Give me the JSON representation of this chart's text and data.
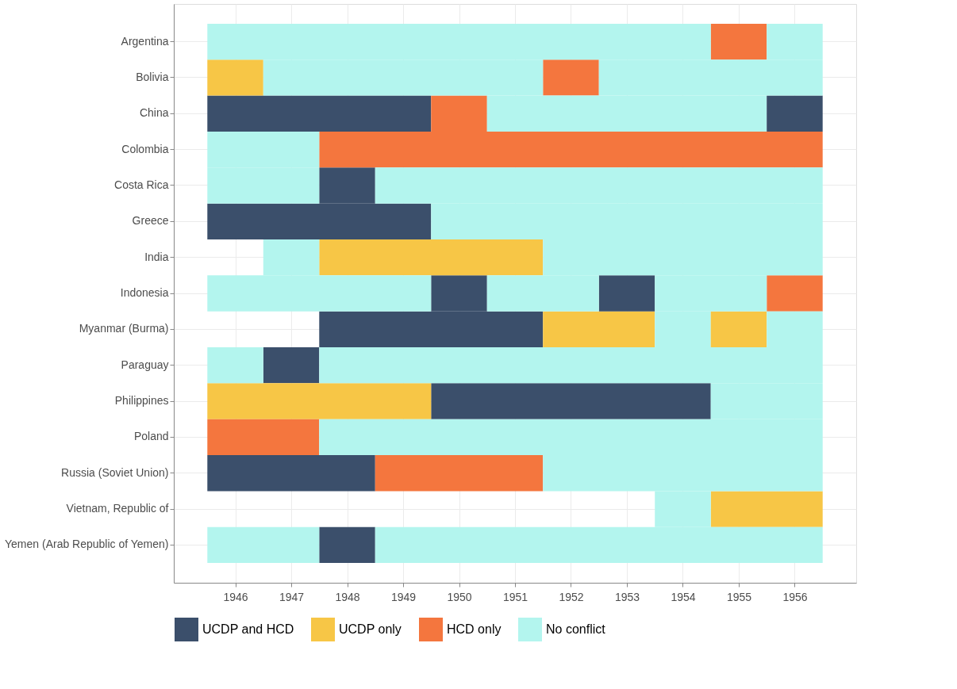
{
  "chart_data": {
    "type": "bar",
    "orientation": "horizontal",
    "categories": [
      "Argentina",
      "Bolivia",
      "China",
      "Colombia",
      "Costa Rica",
      "Greece",
      "India",
      "Indonesia",
      "Myanmar (Burma)",
      "Paraguay",
      "Philippines",
      "Poland",
      "Russia (Soviet Union)",
      "Vietnam, Republic of",
      "Yemen (Arab Republic of Yemen)"
    ],
    "xlim": [
      1944.9,
      1957.1
    ],
    "xticks": [
      1946,
      1947,
      1948,
      1949,
      1950,
      1951,
      1952,
      1953,
      1954,
      1955,
      1956
    ],
    "series": [
      {
        "name": "UCDP and HCD",
        "color": "#3b4f6b",
        "base": [
          null,
          null,
          1945.5,
          null,
          1947.5,
          1945.5,
          null,
          1949.5,
          1947.5,
          1946.5,
          1949.5,
          null,
          1945.5,
          null,
          1947.5
        ],
        "values": [
          null,
          null,
          4,
          null,
          1,
          4,
          null,
          1,
          4,
          1,
          5,
          null,
          3,
          null,
          1
        ]
      },
      {
        "color": "#3b4f6b",
        "base": [
          null,
          null,
          1955.5,
          null,
          null,
          null,
          null,
          1952.5,
          null,
          null,
          null,
          null,
          null,
          null,
          null
        ],
        "values": [
          null,
          null,
          1,
          null,
          null,
          null,
          null,
          1,
          null,
          null,
          null,
          null,
          null,
          null,
          null
        ]
      },
      {
        "name": "UCDP only",
        "color": "#f7c646",
        "base": [
          null,
          1945.5,
          null,
          null,
          null,
          null,
          1947.5,
          null,
          1951.5,
          null,
          1945.5,
          null,
          null,
          1954.5,
          null
        ],
        "values": [
          null,
          1,
          null,
          null,
          null,
          null,
          4,
          null,
          2,
          null,
          4,
          null,
          null,
          2,
          null
        ]
      },
      {
        "color": "#f7c646",
        "base": [
          null,
          null,
          null,
          null,
          null,
          null,
          null,
          null,
          1954.5,
          null,
          null,
          null,
          null,
          null,
          null
        ],
        "values": [
          null,
          null,
          null,
          null,
          null,
          null,
          null,
          null,
          1,
          null,
          null,
          null,
          null,
          null,
          null
        ]
      },
      {
        "name": "HCD only",
        "color": "#f4763e",
        "base": [
          1954.5,
          1951.5,
          1949.5,
          1947.5,
          null,
          null,
          null,
          1955.5,
          null,
          null,
          null,
          1945.5,
          1948.5,
          null,
          null
        ],
        "values": [
          1,
          1,
          1,
          9,
          null,
          null,
          null,
          1,
          null,
          null,
          null,
          2,
          3,
          null,
          null
        ]
      },
      {
        "name": "No conflict",
        "color": "#b3f5ee",
        "base": [
          1945.5,
          1946.5,
          1950.5,
          1945.5,
          1945.5,
          1949.5,
          1946.5,
          1945.5,
          1953.5,
          1945.5,
          1954.5,
          1947.5,
          1951.5,
          1953.5,
          1945.5
        ],
        "values": [
          9,
          5,
          5,
          2,
          2,
          7,
          1,
          4,
          1,
          1,
          2,
          9,
          5,
          1,
          2
        ]
      },
      {
        "color": "#b3f5ee",
        "base": [
          1955.5,
          1952.5,
          null,
          null,
          1948.5,
          null,
          1951.5,
          1950.5,
          1955.5,
          1947.5,
          null,
          null,
          null,
          null,
          1948.5
        ],
        "values": [
          1,
          4,
          null,
          null,
          8,
          null,
          5,
          2,
          1,
          9,
          null,
          null,
          null,
          null,
          8
        ]
      },
      {
        "color": "#b3f5ee",
        "base": [
          null,
          null,
          null,
          null,
          null,
          null,
          null,
          1953.5,
          null,
          null,
          null,
          null,
          null,
          null,
          null
        ],
        "values": [
          null,
          null,
          null,
          null,
          null,
          null,
          null,
          2,
          null,
          null,
          null,
          null,
          null,
          null,
          null
        ]
      }
    ],
    "grid": true,
    "legend": "bottom"
  }
}
